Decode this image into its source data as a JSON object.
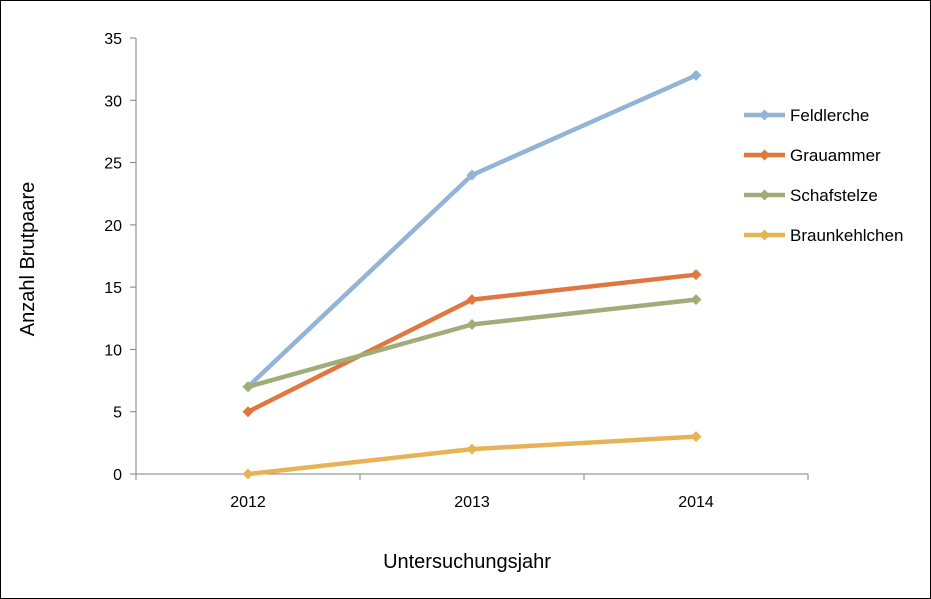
{
  "chart_data": {
    "type": "line",
    "title": "",
    "xlabel": "Untersuchungsjahr",
    "ylabel": "Anzahl Brutpaare",
    "categories": [
      "2012",
      "2013",
      "2014"
    ],
    "ylim": [
      0,
      35
    ],
    "yticks": [
      0,
      5,
      10,
      15,
      20,
      25,
      30,
      35
    ],
    "grid": false,
    "legend_position": "right",
    "series": [
      {
        "name": "Feldlerche",
        "values": [
          7,
          24,
          32
        ],
        "color": "#92b4d6"
      },
      {
        "name": "Grauammer",
        "values": [
          5,
          14,
          16
        ],
        "color": "#e0773f"
      },
      {
        "name": "Schafstelze",
        "values": [
          7,
          12,
          14
        ],
        "color": "#9fae78"
      },
      {
        "name": "Braunkehlchen",
        "values": [
          0,
          2,
          3
        ],
        "color": "#e6b457"
      }
    ]
  }
}
